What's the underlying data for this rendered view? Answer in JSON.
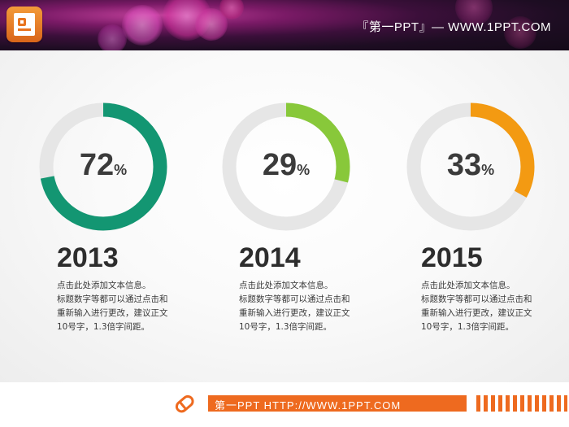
{
  "header": {
    "title": "『第一PPT』— WWW.1PPT.COM"
  },
  "chart_data": [
    {
      "type": "pie",
      "subtype": "donut",
      "value": 72,
      "label": "72",
      "unit": "%",
      "year": "2013",
      "color": "#139672",
      "track_color": "#e6e6e6"
    },
    {
      "type": "pie",
      "subtype": "donut",
      "value": 29,
      "label": "29",
      "unit": "%",
      "year": "2014",
      "color": "#88c83a",
      "track_color": "#e6e6e6"
    },
    {
      "type": "pie",
      "subtype": "donut",
      "value": 33,
      "label": "33",
      "unit": "%",
      "year": "2015",
      "color": "#f39a12",
      "track_color": "#e6e6e6"
    }
  ],
  "items": [
    {
      "lines": [
        "点击此处添加文本信息。",
        "标题数字等都可以通过点击和",
        "重新输入进行更改，建议正文",
        "10号字，1.3倍字间距。"
      ]
    },
    {
      "lines": [
        "点击此处添加文本信息。",
        "标题数字等都可以通过点击和",
        "重新输入进行更改，建议正文",
        "10号字，1.3倍字间距。"
      ]
    },
    {
      "lines": [
        "点击此处添加文本信息。",
        "标题数字等都可以通过点击和",
        "重新输入进行更改，建议正文",
        "10号字，1.3倍字间距。"
      ]
    }
  ],
  "footer": {
    "text": "第一PPT HTTP://WWW.1PPT.COM",
    "accent": "#ee6a1f"
  }
}
